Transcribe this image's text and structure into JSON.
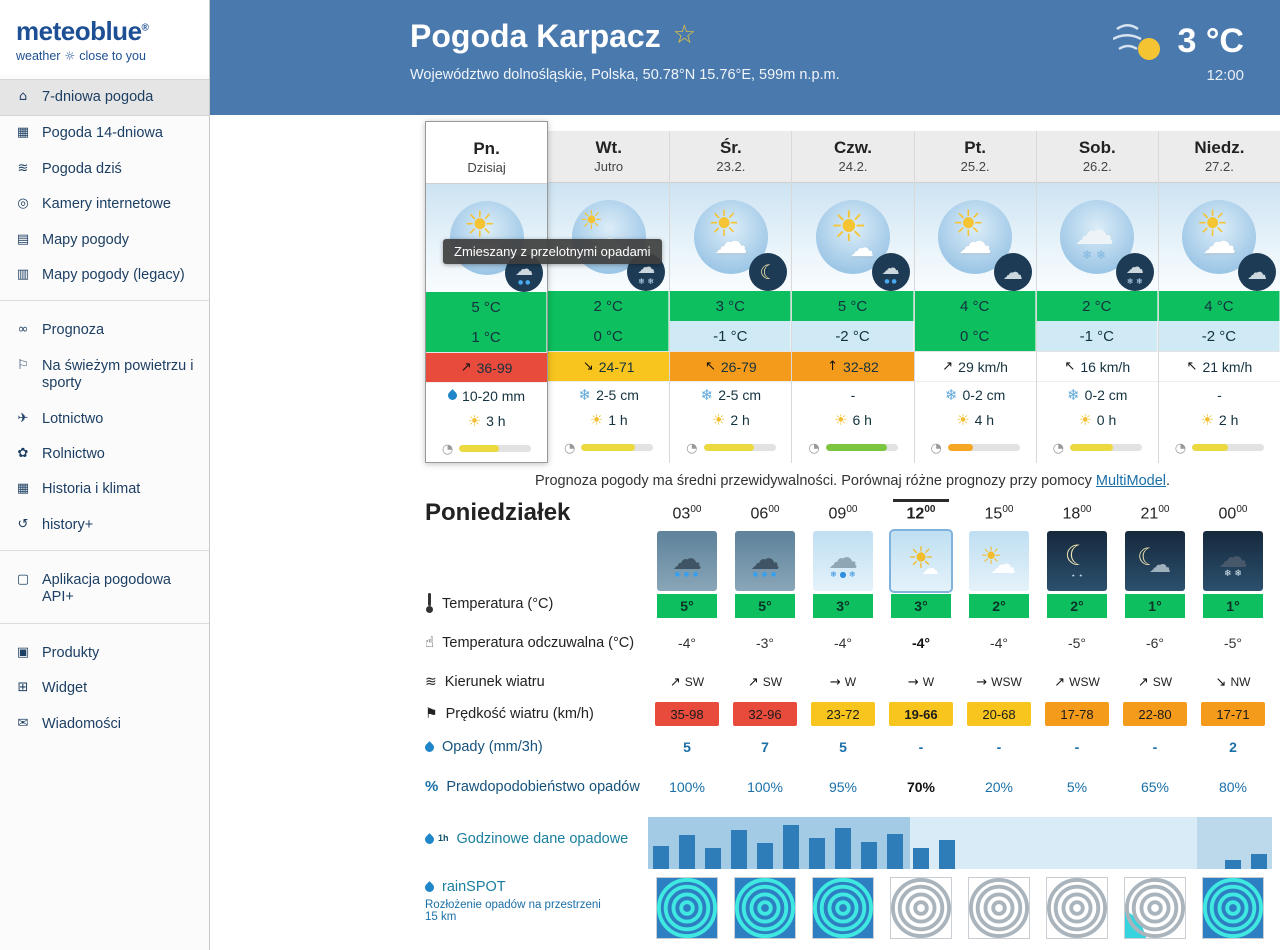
{
  "colors": {
    "header_blue": "#4a79ad",
    "green": "#0dbf5e",
    "light_blue_cell": "#cfe9f5",
    "red": "#e84b3c",
    "yellow": "#f7c51e",
    "orange": "#f59b1b",
    "link_blue": "#1a6fa8"
  },
  "logo": {
    "brand": "meteoblue",
    "reg": "®",
    "tagline_left": "weather",
    "tagline_icon": "☼",
    "tagline_right": "close to you"
  },
  "sidebar": {
    "items": [
      {
        "label": "7-dniowa pogoda",
        "glyph": "⌂",
        "icon": "home-icon",
        "state": "active"
      },
      {
        "label": "Pogoda 14-dniowa",
        "glyph": "▦",
        "icon": "calendar-14-icon",
        "state": ""
      },
      {
        "label": "Pogoda dziś",
        "glyph": "≋",
        "icon": "windsock-icon",
        "state": ""
      },
      {
        "label": "Kamery internetowe",
        "glyph": "◎",
        "icon": "webcam-icon",
        "state": ""
      },
      {
        "label": "Mapy pogody",
        "glyph": "▤",
        "icon": "weather-maps-icon",
        "state": ""
      },
      {
        "label": "Mapy pogody (legacy)",
        "glyph": "▥",
        "icon": "weather-maps-legacy-icon",
        "state": "group-end"
      },
      {
        "label": "Prognoza",
        "glyph": "∞",
        "icon": "meteogram-icon",
        "state": ""
      },
      {
        "label": "Na świeżym powietrzu i sporty",
        "glyph": "⚐",
        "icon": "outdoor-sports-icon",
        "state": ""
      },
      {
        "label": "Lotnictwo",
        "glyph": "✈",
        "icon": "aviation-icon",
        "state": ""
      },
      {
        "label": "Rolnictwo",
        "glyph": "✿",
        "icon": "agriculture-icon",
        "state": ""
      },
      {
        "label": "Historia i klimat",
        "glyph": "▦",
        "icon": "history-climate-icon",
        "state": ""
      },
      {
        "label": "history+",
        "glyph": "↺",
        "icon": "history-plus-icon",
        "state": "group-end"
      },
      {
        "label": "Aplikacja pogodowa API+",
        "glyph": "▢",
        "icon": "api-app-icon",
        "state": "group-end"
      },
      {
        "label": "Produkty",
        "glyph": "▣",
        "icon": "products-icon",
        "state": ""
      },
      {
        "label": "Widget",
        "glyph": "⊞",
        "icon": "widget-icon",
        "state": ""
      },
      {
        "label": "Wiadomości",
        "glyph": "✉",
        "icon": "news-icon",
        "state": ""
      }
    ]
  },
  "header": {
    "title": "Pogoda Karpacz",
    "favorite_icon": "☆",
    "subtitle": "Województwo dolnośląskie, Polska, 50.78°N 15.76°E, 599m n.p.m.",
    "current_temp": "3 °C",
    "current_time": "12:00"
  },
  "week": {
    "tooltip": "Zmieszany z przelotnymi opadami",
    "days": [
      {
        "name": "Pn.",
        "date": "Dzisiaj",
        "state": "today",
        "big": "b-mixed",
        "badge": "badge-rain",
        "tmax": "5 °C",
        "tmax_class": "cell-green",
        "tmin": "1 °C",
        "tmin_class": "cell-green",
        "wind_arrow": "↗",
        "wind": "36-99",
        "wind_class": "cell-red",
        "precip_icon": "ic-drop",
        "precip": "10-20 mm",
        "sun": "3 h",
        "predict": 55,
        "predict_class": "fill-yellow"
      },
      {
        "name": "Wt.",
        "date": "Jutro",
        "state": "",
        "big": "b-cloudy",
        "badge": "badge-snow",
        "tmax": "2 °C",
        "tmax_class": "cell-green",
        "tmin": "0 °C",
        "tmin_class": "cell-green",
        "wind_arrow": "↘",
        "wind": "24-71",
        "wind_class": "cell-yellow",
        "precip_icon": "ic-flake",
        "precip": "2-5 cm",
        "sun": "1 h",
        "predict": 75,
        "predict_class": "fill-yellow"
      },
      {
        "name": "Śr.",
        "date": "23.2.",
        "state": "",
        "big": "b-mixed",
        "badge": "badge-moon",
        "tmax": "3 °C",
        "tmax_class": "cell-green",
        "tmin": "-1 °C",
        "tmin_class": "cell-blue",
        "wind_arrow": "↖",
        "wind": "26-79",
        "wind_class": "cell-orange",
        "precip_icon": "ic-flake",
        "precip": "2-5 cm",
        "sun": "2 h",
        "predict": 70,
        "predict_class": "fill-yellow"
      },
      {
        "name": "Czw.",
        "date": "24.2.",
        "state": "",
        "big": "b-sunny",
        "badge": "badge-rain",
        "tmax": "5 °C",
        "tmax_class": "cell-green",
        "tmin": "-2 °C",
        "tmin_class": "cell-blue",
        "wind_arrow": "↑",
        "wind": "32-82",
        "wind_class": "cell-orange",
        "precip_icon": "ic-none",
        "precip": "-",
        "sun": "6 h",
        "predict": 85,
        "predict_class": "fill-green"
      },
      {
        "name": "Pt.",
        "date": "25.2.",
        "state": "",
        "big": "b-mixed",
        "badge": "badge-cloud",
        "tmax": "4 °C",
        "tmax_class": "cell-green",
        "tmin": "0 °C",
        "tmin_class": "cell-green",
        "wind_arrow": "↗",
        "wind": "29 km/h",
        "wind_class": "",
        "precip_icon": "ic-flake",
        "precip": "0-2 cm",
        "sun": "4 h",
        "predict": 35,
        "predict_class": "fill-orange"
      },
      {
        "name": "Sob.",
        "date": "26.2.",
        "state": "",
        "big": "b-snowy",
        "badge": "badge-snow",
        "tmax": "2 °C",
        "tmax_class": "cell-green",
        "tmin": "-1 °C",
        "tmin_class": "cell-blue",
        "wind_arrow": "↖",
        "wind": "16 km/h",
        "wind_class": "",
        "precip_icon": "ic-flake",
        "precip": "0-2 cm",
        "sun": "0 h",
        "predict": 60,
        "predict_class": "fill-yellow"
      },
      {
        "name": "Niedz.",
        "date": "27.2.",
        "state": "",
        "big": "b-mixed",
        "badge": "badge-cloud",
        "tmax": "4 °C",
        "tmax_class": "cell-green",
        "tmin": "-2 °C",
        "tmin_class": "cell-blue",
        "wind_arrow": "↖",
        "wind": "21 km/h",
        "wind_class": "",
        "precip_icon": "ic-none",
        "precip": "-",
        "sun": "2 h",
        "predict": 50,
        "predict_class": "fill-yellow"
      }
    ]
  },
  "note": {
    "text_before": "Prognoza pogody ma średni przewidywalności. Porównaj różne prognozy przy pomocy ",
    "link": "MultiModel",
    "text_after": "."
  },
  "hourly": {
    "title": "Poniedziałek",
    "labels": {
      "temperature": "Temperatura (°C)",
      "feels": "Temperatura odczuwalna (°C)",
      "wind_dir": "Kierunek wiatru",
      "wind_speed": "Prędkość wiatru (km/h)",
      "precip": "Opady (mm/3h)",
      "prob": "Prawdopodobieństwo opadów",
      "hourly_precip": "Godzinowe dane opadowe",
      "rainspot": "rainSPOT",
      "rainspot_sub": "Rozłożenie opadów na przestrzeni 15 km"
    },
    "hours": [
      {
        "time": "03",
        "sup": "00",
        "state": "",
        "tile": "tile-storm",
        "wx": "wx-rain",
        "temp": "5°",
        "feels": "-4°",
        "dir_arrow": "↗",
        "dir": "SW",
        "speed": "35-98",
        "speed_class": "cell-red",
        "precip": "5",
        "prob": "100%"
      },
      {
        "time": "06",
        "sup": "00",
        "state": "",
        "tile": "tile-storm",
        "wx": "wx-rain",
        "temp": "5°",
        "feels": "-3°",
        "dir_arrow": "↗",
        "dir": "SW",
        "speed": "32-96",
        "speed_class": "cell-red",
        "precip": "7",
        "prob": "100%"
      },
      {
        "time": "09",
        "sup": "00",
        "state": "",
        "tile": "tile-day",
        "wx": "wx-sleet",
        "temp": "3°",
        "feels": "-4°",
        "dir_arrow": "→",
        "dir": "W",
        "speed": "23-72",
        "speed_class": "cell-yellow",
        "precip": "5",
        "prob": "95%"
      },
      {
        "time": "12",
        "sup": "00",
        "state": "selected",
        "tile": "tile-day",
        "wx": "wx-sun",
        "temp": "3°",
        "feels": "-4°",
        "dir_arrow": "→",
        "dir": "W",
        "speed": "19-66",
        "speed_class": "cell-yellow",
        "precip": "-",
        "prob": "70%"
      },
      {
        "time": "15",
        "sup": "00",
        "state": "",
        "tile": "tile-day",
        "wx": "wx-sun-cloud",
        "temp": "2°",
        "feels": "-4°",
        "dir_arrow": "→",
        "dir": "WSW",
        "speed": "20-68",
        "speed_class": "cell-yellow",
        "precip": "-",
        "prob": "20%"
      },
      {
        "time": "18",
        "sup": "00",
        "state": "",
        "tile": "tile-night",
        "wx": "wx-moon",
        "temp": "2°",
        "feels": "-5°",
        "dir_arrow": "↗",
        "dir": "WSW",
        "speed": "17-78",
        "speed_class": "cell-orange",
        "precip": "-",
        "prob": "5%"
      },
      {
        "time": "21",
        "sup": "00",
        "state": "",
        "tile": "tile-night",
        "wx": "wx-moon-cloud",
        "temp": "1°",
        "feels": "-6°",
        "dir_arrow": "↗",
        "dir": "SW",
        "speed": "22-80",
        "speed_class": "cell-orange",
        "precip": "-",
        "prob": "65%"
      },
      {
        "time": "00",
        "sup": "00",
        "state": "",
        "tile": "tile-night",
        "wx": "wx-cloud-snow",
        "temp": "1°",
        "feels": "-5°",
        "dir_arrow": "↘",
        "dir": "NW",
        "speed": "17-71",
        "speed_class": "cell-orange",
        "precip": "2",
        "prob": "80%"
      }
    ],
    "precip_bars": [
      45,
      65,
      40,
      75,
      50,
      85,
      60,
      78,
      52,
      68,
      40,
      55,
      0,
      0,
      0,
      0,
      0,
      0,
      0,
      0,
      0,
      0,
      18,
      28
    ],
    "rainspot": [
      {
        "bg": "#2e7fc2",
        "rings": "#3fe8e0"
      },
      {
        "bg": "#2e7fc2",
        "rings": "#3fe8e0"
      },
      {
        "bg": "#2e7fc2",
        "rings": "#3fe8e0"
      },
      {
        "bg": "#ffffff",
        "rings": "#aab4bc"
      },
      {
        "bg": "#ffffff",
        "rings": "#aab4bc"
      },
      {
        "bg": "#ffffff",
        "rings": "#aab4bc"
      },
      {
        "bg": "#ffffff",
        "rings": "#aab4bc",
        "corner": "#35d4de"
      },
      {
        "bg": "#2e7fc2",
        "rings": "#3fe8e0"
      }
    ]
  }
}
